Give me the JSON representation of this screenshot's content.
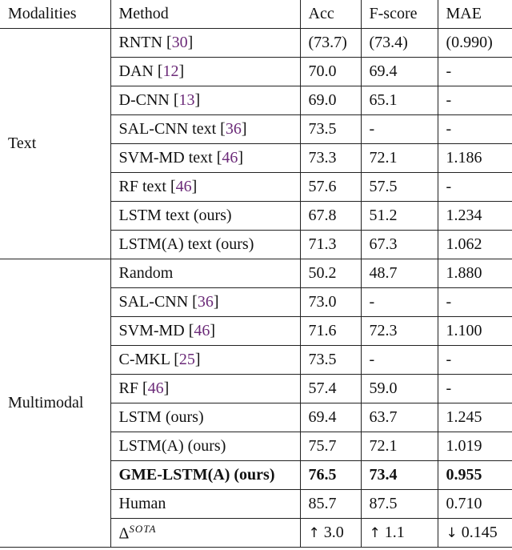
{
  "headers": {
    "modalities": "Modalities",
    "method": "Method",
    "acc": "Acc",
    "fscore": "F-score",
    "mae": "MAE"
  },
  "groups": [
    {
      "modality": "Text",
      "rows": [
        {
          "method": "RNTN [30]",
          "method_name": "RNTN",
          "cite": "30",
          "acc": "(73.7)",
          "fscore": "(73.4)",
          "mae": "(0.990)"
        },
        {
          "method": "DAN [12]",
          "method_name": "DAN",
          "cite": "12",
          "acc": "70.0",
          "fscore": "69.4",
          "mae": "-"
        },
        {
          "method": "D-CNN [13]",
          "method_name": "D-CNN",
          "cite": "13",
          "acc": "69.0",
          "fscore": "65.1",
          "mae": "-"
        },
        {
          "method": "SAL-CNN text [36]",
          "method_name": "SAL-CNN text",
          "cite": "36",
          "acc": "73.5",
          "fscore": "-",
          "mae": "-"
        },
        {
          "method": "SVM-MD text [46]",
          "method_name": "SVM-MD text",
          "cite": "46",
          "acc": "73.3",
          "fscore": "72.1",
          "mae": "1.186"
        },
        {
          "method": "RF text [46]",
          "method_name": "RF text",
          "cite": "46",
          "acc": "57.6",
          "fscore": "57.5",
          "mae": "-"
        },
        {
          "method": "LSTM text (ours)",
          "method_name": "LSTM text (ours)",
          "cite": "",
          "acc": "67.8",
          "fscore": "51.2",
          "mae": "1.234"
        },
        {
          "method": "LSTM(A) text (ours)",
          "method_name": "LSTM(A) text (ours)",
          "cite": "",
          "acc": "71.3",
          "fscore": "67.3",
          "mae": "1.062"
        }
      ]
    },
    {
      "modality": "Multimodal",
      "rows": [
        {
          "method": "Random",
          "method_name": "Random",
          "cite": "",
          "acc": "50.2",
          "fscore": "48.7",
          "mae": "1.880"
        },
        {
          "method": "SAL-CNN [36]",
          "method_name": "SAL-CNN",
          "cite": "36",
          "acc": "73.0",
          "fscore": "-",
          "mae": "-"
        },
        {
          "method": "SVM-MD [46]",
          "method_name": "SVM-MD",
          "cite": "46",
          "acc": "71.6",
          "fscore": "72.3",
          "mae": "1.100"
        },
        {
          "method": "C-MKL [25]",
          "method_name": "C-MKL",
          "cite": "25",
          "acc": "73.5",
          "fscore": "-",
          "mae": "-"
        },
        {
          "method": "RF [46]",
          "method_name": "RF",
          "cite": "46",
          "acc": "57.4",
          "fscore": "59.0",
          "mae": "-"
        },
        {
          "method": "LSTM (ours)",
          "method_name": "LSTM (ours)",
          "cite": "",
          "acc": "69.4",
          "fscore": "63.7",
          "mae": "1.245"
        },
        {
          "method": "LSTM(A) (ours)",
          "method_name": "LSTM(A) (ours)",
          "cite": "",
          "acc": "75.7",
          "fscore": "72.1",
          "mae": "1.019"
        },
        {
          "method": "GME-LSTM(A) (ours)",
          "method_name": "GME-LSTM(A) (ours)",
          "cite": "",
          "acc": "76.5",
          "fscore": "73.4",
          "mae": "0.955",
          "bold": true
        },
        {
          "method": "Human",
          "method_name": "Human",
          "cite": "",
          "acc": "85.7",
          "fscore": "87.5",
          "mae": "0.710"
        },
        {
          "method": "ΔSOTA",
          "method_name": "Δ",
          "sup": "SOTA",
          "cite": "",
          "acc": "3.0",
          "acc_arrow": "↑",
          "fscore": "1.1",
          "fscore_arrow": "↑",
          "mae": "0.145",
          "mae_arrow": "↓",
          "delta": true
        }
      ]
    }
  ]
}
